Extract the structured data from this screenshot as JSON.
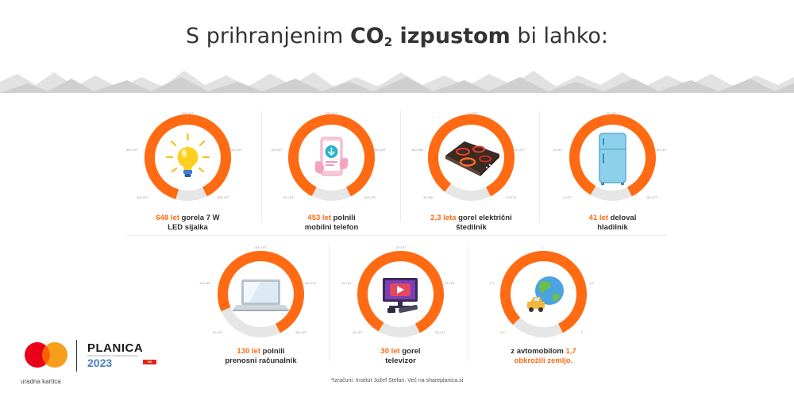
{
  "header": {
    "title_pre": "S prihranjenim ",
    "title_bold": "CO",
    "title_sub": "2",
    "title_bold2": " izpustom",
    "title_post": " bi lahko:"
  },
  "colors": {
    "accent": "#ff6a13",
    "track": "#e6e6e6",
    "mountain": "#dcdcdc"
  },
  "cards": [
    {
      "icon": "light-bulb-icon",
      "progress": 0.88,
      "ticks": [
        "200 LET",
        "300 LET",
        "100 LET",
        "400 LET",
        "50 LET",
        "500 LET"
      ],
      "value": "648 let",
      "text1": " gorela 7 W",
      "text2": "LED sijalka"
    },
    {
      "icon": "mobile-phone-icon",
      "progress": 0.85,
      "ticks": [
        "250 LET",
        "150 LET",
        "350 LET",
        "50 LET",
        "400 LET"
      ],
      "value": "453 let",
      "text1": " polnili",
      "text2": "mobilni telefon"
    },
    {
      "icon": "electric-stove-icon",
      "progress": 0.82,
      "ticks": [
        "1 LETO",
        "100 DNI",
        "2 LETI",
        "30 DNI",
        "3 LETA"
      ],
      "value": "2,3 leta",
      "text1": " gorel električni",
      "text2": "štedilnik"
    },
    {
      "icon": "refrigerator-icon",
      "progress": 0.84,
      "ticks": [
        "20 LET",
        "10 LET",
        "30 LET",
        "2 LET",
        "50 LET"
      ],
      "value": "41 let",
      "text1": " deloval",
      "text2": "hladilnik"
    },
    {
      "icon": "laptop-icon",
      "progress": 0.74,
      "ticks": [
        "300 LET",
        "100 LET",
        "400 LET",
        "50 LET",
        "450 LET"
      ],
      "value": "130 let",
      "text1": " polnili",
      "text2": "prenosni računalnik"
    },
    {
      "icon": "television-icon",
      "progress": 0.84,
      "ticks": [
        "20 LET",
        "15 LET",
        "25 LET",
        "10 LET",
        "40 LET"
      ],
      "value": "30 let",
      "text1": " gorel",
      "text2": "televizor"
    },
    {
      "icon": "car-globe-icon",
      "progress": 0.8,
      "ticks": [
        "1",
        "0,7",
        "1,5",
        "0,5",
        "2"
      ],
      "value": "1,7",
      "text0": "z avtomobilom ",
      "text2": "obkrožili zemljo."
    }
  ],
  "footnote": "*Izračuni: Institut Jožef Stefan. Več na shareplanica.si",
  "brand": {
    "partner_label": "uradna kartica",
    "event_name": "PLANICA",
    "event_sub": "SVETOVNO PRVENSTVO V NORDIJSKEM SMUČANJU",
    "event_year": "2023",
    "badge": "VIS BRANDS"
  }
}
